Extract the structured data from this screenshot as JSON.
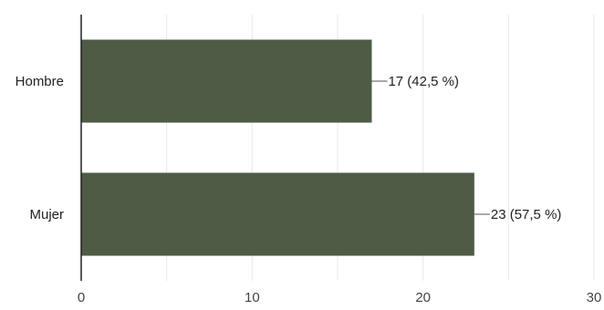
{
  "chart_data": {
    "type": "bar",
    "orientation": "horizontal",
    "categories": [
      "Hombre",
      "Mujer"
    ],
    "values": [
      17,
      23
    ],
    "data_labels": [
      "17 (42,5 %)",
      "23 (57,5 %)"
    ],
    "xlim": [
      0,
      30
    ],
    "x_ticks": [
      0,
      10,
      20,
      30
    ],
    "x_tick_labels": [
      "0",
      "10",
      "20",
      "30"
    ],
    "grid": true,
    "colors": {
      "bar": "#4e5b45",
      "grid": "#e9e9e9",
      "axis": "#222222"
    }
  }
}
